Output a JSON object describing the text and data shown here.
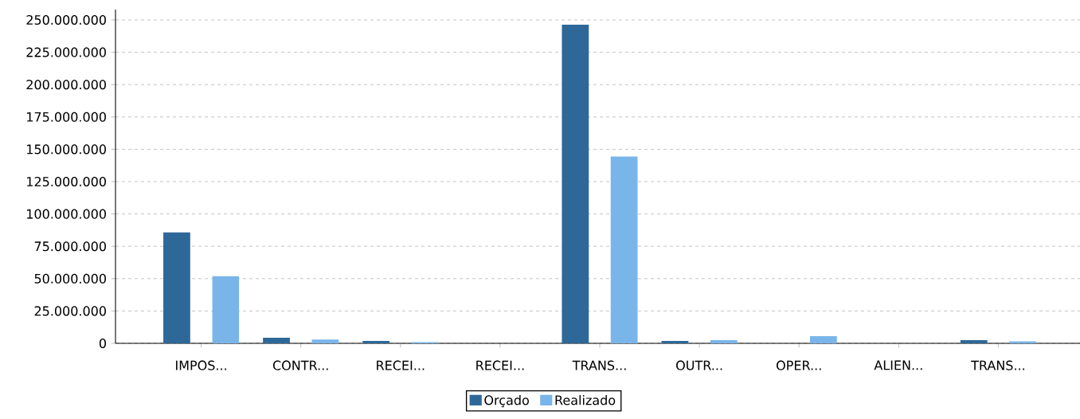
{
  "chart_data": {
    "type": "bar",
    "categories": [
      "IMPOS...",
      "CONTR...",
      "RECEI...",
      "RECEI...",
      "TRANS...",
      "OUTR...",
      "OPER...",
      "ALIEN...",
      "TRANS..."
    ],
    "series": [
      {
        "name": "Orçado",
        "color": "#2e6898",
        "values": [
          85800000,
          4300000,
          1800000,
          null,
          246300000,
          1800000,
          null,
          null,
          2500000
        ]
      },
      {
        "name": "Realizado",
        "color": "#7ab5ea",
        "values": [
          51900000,
          3000000,
          900000,
          null,
          144400000,
          2500000,
          5500000,
          null,
          1500000
        ]
      }
    ],
    "ylim": [
      0,
      258000000
    ],
    "yticks": [
      {
        "value": 0,
        "label": "0"
      },
      {
        "value": 25000000,
        "label": "25.000.000"
      },
      {
        "value": 50000000,
        "label": "50.000.000"
      },
      {
        "value": 75000000,
        "label": "75.000.000"
      },
      {
        "value": 100000000,
        "label": "100.000.000"
      },
      {
        "value": 125000000,
        "label": "125.000.000"
      },
      {
        "value": 150000000,
        "label": "150.000.000"
      },
      {
        "value": 175000000,
        "label": "175.000.000"
      },
      {
        "value": 200000000,
        "label": "200.000.000"
      },
      {
        "value": 225000000,
        "label": "225.000.000"
      },
      {
        "value": 250000000,
        "label": "250.000.000"
      }
    ],
    "grid": "y",
    "legend": "bottom"
  }
}
